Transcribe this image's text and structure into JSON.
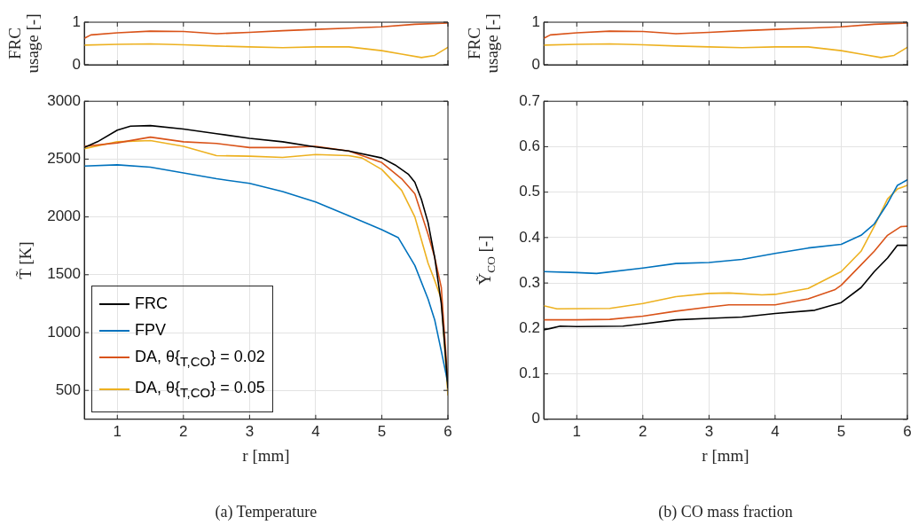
{
  "chart_data": [
    {
      "type": "line",
      "ylabel": "FRC usage [-]",
      "xlim": [
        0.5,
        6
      ],
      "xticks": [
        {
          "value": 1,
          "label": null
        },
        {
          "value": 2,
          "label": null
        },
        {
          "value": 3,
          "label": null
        },
        {
          "value": 4,
          "label": null
        },
        {
          "value": 5,
          "label": null
        },
        {
          "value": 6,
          "label": null
        }
      ],
      "ylim": [
        0,
        1
      ],
      "yticks": [
        0,
        1
      ],
      "tick_labels": "y",
      "grid": true,
      "series": [
        {
          "color": "#d95319",
          "x": [
            0.5,
            0.6,
            1,
            1.5,
            2,
            2.5,
            3,
            3.5,
            4,
            4.5,
            5,
            5.5,
            6
          ],
          "values": [
            0.62,
            0.7,
            0.75,
            0.79,
            0.78,
            0.73,
            0.76,
            0.8,
            0.83,
            0.86,
            0.89,
            0.95,
            0.98
          ]
        },
        {
          "color": "#edb120",
          "x": [
            0.5,
            1,
            1.5,
            2,
            2.5,
            3,
            3.5,
            4,
            4.5,
            5,
            5.3,
            5.6,
            5.8,
            6
          ],
          "values": [
            0.46,
            0.48,
            0.49,
            0.47,
            0.44,
            0.42,
            0.4,
            0.42,
            0.42,
            0.33,
            0.25,
            0.17,
            0.22,
            0.41
          ]
        }
      ]
    },
    {
      "type": "line",
      "ylabel": "T̃ [K]",
      "xlabel": "r [mm]",
      "xlim": [
        0.5,
        6
      ],
      "xticks": [
        1,
        2,
        3,
        4,
        5,
        6
      ],
      "ylim": [
        250,
        3000
      ],
      "yticks": [
        500,
        1000,
        1500,
        2000,
        2500,
        3000
      ],
      "grid": true,
      "legend": "bottom left",
      "annotations": [
        "(a) Temperature"
      ],
      "series": [
        {
          "name": "FRC",
          "color": "#000000",
          "x": [
            0.5,
            0.7,
            1,
            1.2,
            1.5,
            2,
            2.5,
            3,
            3.5,
            4,
            4.5,
            5,
            5.2,
            5.4,
            5.5,
            5.6,
            5.7,
            5.8,
            5.9,
            5.95,
            6
          ],
          "values": [
            2600,
            2650,
            2750,
            2785,
            2790,
            2760,
            2720,
            2680,
            2650,
            2605,
            2570,
            2510,
            2450,
            2370,
            2300,
            2150,
            1950,
            1650,
            1250,
            900,
            520
          ]
        },
        {
          "name": "FPV",
          "color": "#0072bd",
          "x": [
            0.5,
            1,
            1.5,
            2,
            2.5,
            3,
            3.5,
            4,
            4.5,
            5,
            5.25,
            5.5,
            5.7,
            5.8,
            5.9,
            6
          ],
          "values": [
            2440,
            2450,
            2430,
            2380,
            2330,
            2290,
            2220,
            2130,
            2010,
            1890,
            1820,
            1580,
            1290,
            1110,
            840,
            560
          ]
        },
        {
          "name": "DA, θ{$_{T,CO}$} = 0.02",
          "color": "#d95319",
          "x": [
            0.5,
            1,
            1.5,
            2,
            2.5,
            3,
            3.5,
            4,
            4.5,
            5,
            5.3,
            5.5,
            5.7,
            5.8,
            5.9,
            6
          ],
          "values": [
            2610,
            2640,
            2690,
            2650,
            2635,
            2600,
            2600,
            2610,
            2570,
            2470,
            2330,
            2200,
            1850,
            1650,
            1390,
            560
          ]
        },
        {
          "name": "DA, θ{$_{T,CO}$} = 0.05",
          "color": "#edb120",
          "x": [
            0.5,
            1,
            1.5,
            2,
            2.5,
            3,
            3.5,
            4,
            4.5,
            4.7,
            5,
            5.3,
            5.5,
            5.7,
            5.8,
            5.9,
            6
          ],
          "values": [
            2590,
            2650,
            2660,
            2610,
            2530,
            2525,
            2515,
            2540,
            2530,
            2510,
            2410,
            2230,
            2000,
            1600,
            1450,
            1290,
            460
          ]
        }
      ]
    },
    {
      "type": "line",
      "ylabel": "FRC usage [-]",
      "xlim": [
        0.5,
        6
      ],
      "xticks": [
        {
          "value": 1,
          "label": null
        },
        {
          "value": 2,
          "label": null
        },
        {
          "value": 3,
          "label": null
        },
        {
          "value": 4,
          "label": null
        },
        {
          "value": 5,
          "label": null
        },
        {
          "value": 6,
          "label": null
        }
      ],
      "ylim": [
        0,
        1
      ],
      "yticks": [
        0,
        1
      ],
      "tick_labels": "y",
      "grid": true,
      "series": [
        {
          "color": "#d95319",
          "x": [
            0.5,
            0.6,
            1,
            1.5,
            2,
            2.5,
            3,
            3.5,
            4,
            4.5,
            5,
            5.5,
            6
          ],
          "values": [
            0.62,
            0.7,
            0.75,
            0.79,
            0.78,
            0.73,
            0.76,
            0.8,
            0.83,
            0.86,
            0.89,
            0.95,
            0.98
          ]
        },
        {
          "color": "#edb120",
          "x": [
            0.5,
            1,
            1.5,
            2,
            2.5,
            3,
            3.5,
            4,
            4.5,
            5,
            5.3,
            5.6,
            5.8,
            6
          ],
          "values": [
            0.46,
            0.48,
            0.49,
            0.47,
            0.44,
            0.42,
            0.4,
            0.42,
            0.42,
            0.33,
            0.25,
            0.17,
            0.22,
            0.41
          ]
        }
      ]
    },
    {
      "type": "line",
      "ylabel": "Ỹ$_{CO}$ [-]",
      "xlabel": "r [mm]",
      "xlim": [
        0.5,
        6
      ],
      "xticks": [
        1,
        2,
        3,
        4,
        5,
        6
      ],
      "ylim": [
        0,
        0.7
      ],
      "yticks": [
        0,
        0.1,
        0.2,
        0.3,
        0.4,
        0.5,
        0.6,
        0.7
      ],
      "grid": true,
      "annotations": [
        "(b) CO mass fraction"
      ],
      "series": [
        {
          "color": "#0072bd",
          "x": [
            0.5,
            1,
            1.3,
            2,
            2.5,
            3,
            3.5,
            4,
            4.5,
            5,
            5.3,
            5.5,
            5.7,
            5.85,
            6
          ],
          "values": [
            0.325,
            0.323,
            0.321,
            0.333,
            0.343,
            0.345,
            0.352,
            0.365,
            0.377,
            0.385,
            0.405,
            0.43,
            0.475,
            0.515,
            0.527
          ]
        },
        {
          "color": "#edb120",
          "x": [
            0.5,
            0.7,
            1.5,
            2,
            2.5,
            3,
            3.3,
            3.8,
            4,
            4.5,
            5,
            5.3,
            5.5,
            5.7,
            5.85,
            6
          ],
          "values": [
            0.25,
            0.243,
            0.244,
            0.255,
            0.27,
            0.277,
            0.278,
            0.274,
            0.275,
            0.288,
            0.325,
            0.37,
            0.425,
            0.485,
            0.507,
            0.515
          ]
        },
        {
          "color": "#d95319",
          "x": [
            0.5,
            1,
            1.5,
            2,
            2.5,
            3,
            3.3,
            4,
            4.5,
            4.9,
            5,
            5.3,
            5.5,
            5.7,
            5.9,
            6
          ],
          "values": [
            0.219,
            0.219,
            0.22,
            0.227,
            0.238,
            0.247,
            0.252,
            0.252,
            0.265,
            0.285,
            0.295,
            0.34,
            0.37,
            0.405,
            0.424,
            0.425
          ]
        },
        {
          "color": "#000000",
          "x": [
            0.5,
            0.6,
            0.75,
            1,
            1.7,
            2,
            2.5,
            3,
            3.5,
            4,
            4.6,
            5,
            5.3,
            5.5,
            5.7,
            5.85,
            5.95,
            6
          ],
          "values": [
            0.197,
            0.2,
            0.205,
            0.204,
            0.205,
            0.21,
            0.219,
            0.222,
            0.225,
            0.233,
            0.24,
            0.257,
            0.29,
            0.325,
            0.355,
            0.383,
            0.383,
            0.383
          ]
        }
      ]
    }
  ]
}
